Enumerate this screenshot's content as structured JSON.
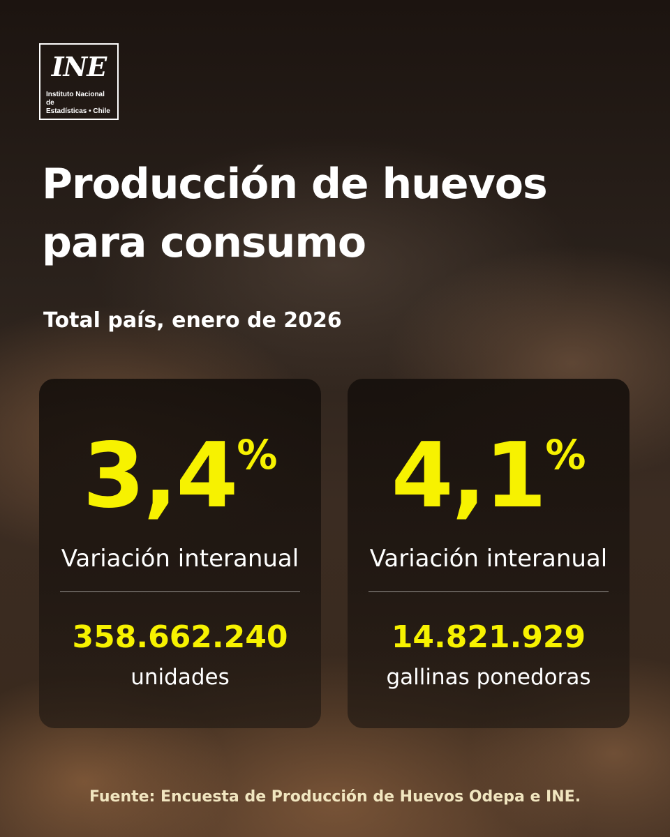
{
  "logo": {
    "mark": "INE",
    "line1": "Instituto Nacional de",
    "line2": "Estadísticas • Chile"
  },
  "header": {
    "title_line1": "Producción de huevos",
    "title_line2": "para consumo",
    "subtitle": "Total país, enero de 2026"
  },
  "cards": [
    {
      "value": "3,4",
      "percent_sign": "%",
      "label": "Variación interanual",
      "count": "358.662.240",
      "unit": "unidades"
    },
    {
      "value": "4,1",
      "percent_sign": "%",
      "label": "Variación interanual",
      "count": "14.821.929",
      "unit": "gallinas ponedoras"
    }
  ],
  "footer": {
    "source": "Fuente: Encuesta de Producción de Huevos Odepa e INE."
  },
  "colors": {
    "accent": "#f7f200",
    "text": "#ffffff",
    "card_background": "#1a130f"
  }
}
